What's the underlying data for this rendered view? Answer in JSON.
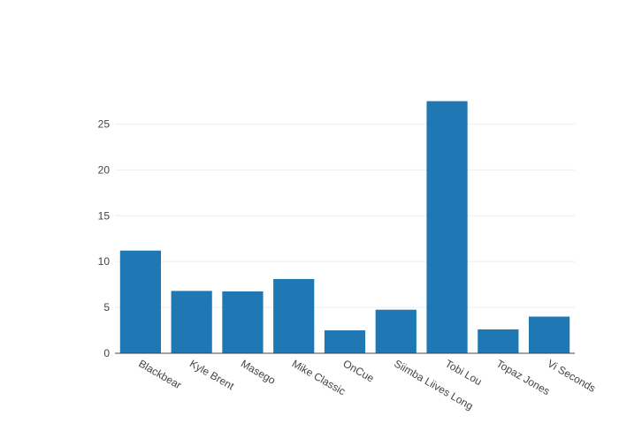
{
  "chart_data": {
    "type": "bar",
    "title": "",
    "xlabel": "",
    "ylabel": "",
    "categories": [
      "Blackbear",
      "Kyle Brent",
      "Masego",
      "Mike Classic",
      "OnCue",
      "Siimba Liives Long",
      "Tobi Lou",
      "Topaz Jones",
      "Vi Seconds"
    ],
    "values": [
      11.2,
      6.8,
      6.75,
      8.1,
      2.5,
      4.75,
      27.5,
      2.6,
      4.0
    ],
    "ylim": [
      0,
      28.9
    ],
    "yticks": [
      0,
      5,
      10,
      15,
      20,
      25
    ],
    "ytick_labels": [
      "0",
      "5",
      "10",
      "15",
      "20",
      "25"
    ],
    "grid": "horizontal",
    "legend": "none",
    "x_tick_rotation": 30,
    "bar_color": "#1f77b4",
    "grid_color": "#eeeeee",
    "axis_color": "#444444"
  }
}
